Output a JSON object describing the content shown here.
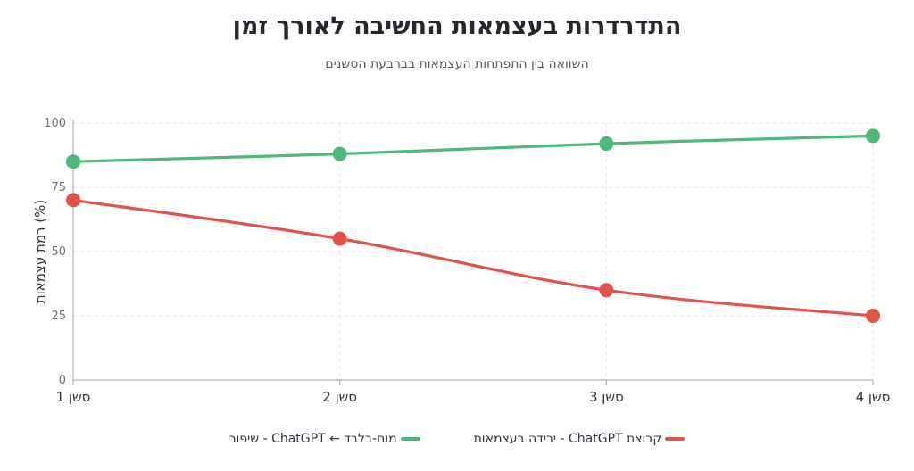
{
  "chart_data": {
    "type": "line",
    "title": "התדרדרות בעצמאות החשיבה לאורך זמן",
    "subtitle": "השוואה בין התפתחות העצמאות בברבעת הסשנים",
    "xlabel": "",
    "ylabel": "רמת עצמאות (%)",
    "categories": [
      "סשן 1",
      "סשן 2",
      "סשן 3",
      "סשן 4"
    ],
    "ylim": [
      0,
      100
    ],
    "yticks": [
      0,
      25,
      50,
      75,
      100
    ],
    "grid": true,
    "legend_position": "bottom",
    "series": [
      {
        "name": "מוח-בלבד ← ChatGPT - שיפור",
        "color": "#4cb87a",
        "values": [
          85,
          88,
          92,
          95
        ]
      },
      {
        "name": "קבוצת ChatGPT - ירידה בעצמאות",
        "color": "#e0534a",
        "values": [
          70,
          55,
          35,
          25
        ]
      }
    ]
  }
}
